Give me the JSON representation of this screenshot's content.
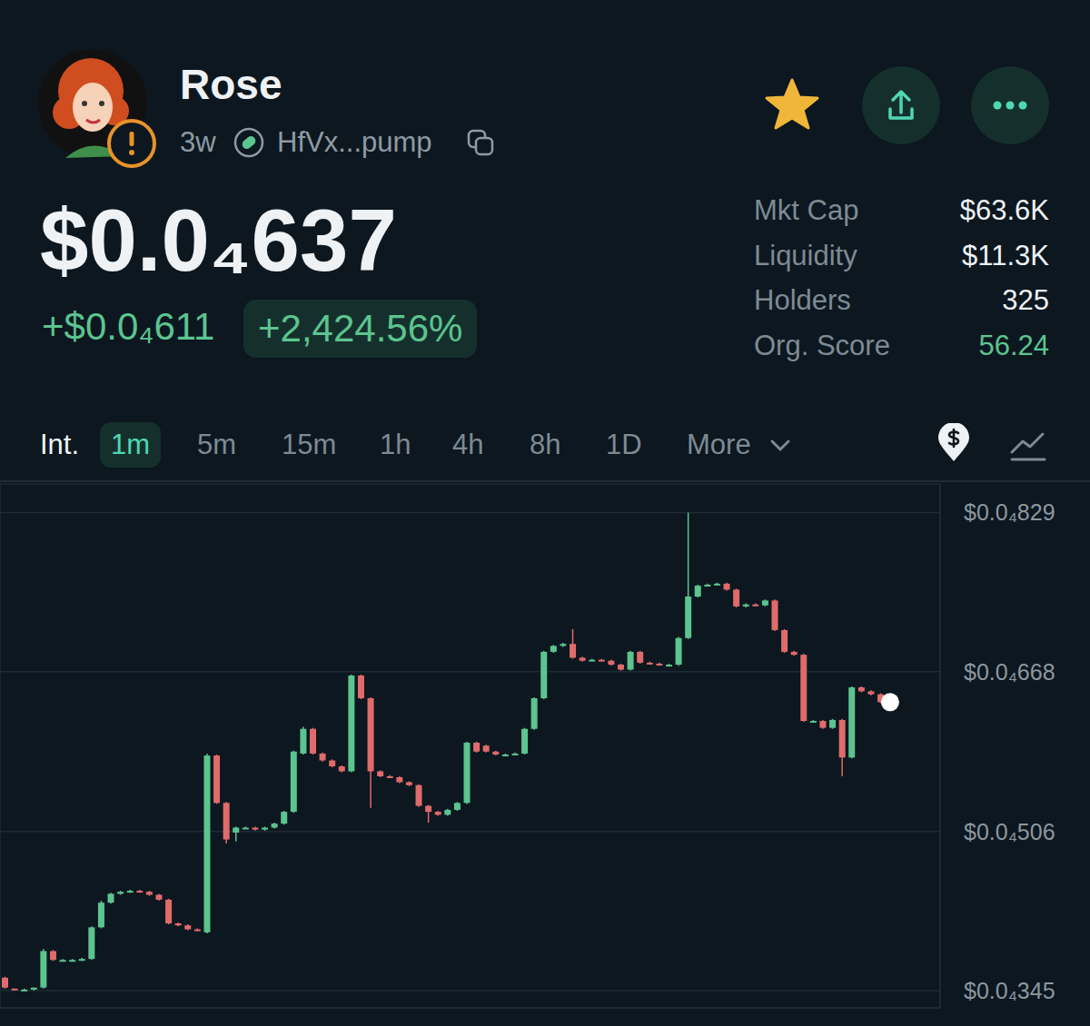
{
  "header": {
    "name": "Rose",
    "age": "3w",
    "address": "HfVx...pump",
    "price": "$0.0₄637",
    "change": "+$0.0₄611",
    "change_percent": "+2,424.56%"
  },
  "stats": [
    {
      "label": "Mkt Cap",
      "value": "$63.6K"
    },
    {
      "label": "Liquidity",
      "value": "$11.3K"
    },
    {
      "label": "Holders",
      "value": "325"
    },
    {
      "label": "Org. Score",
      "value": "56.24"
    }
  ],
  "intervals": {
    "label": "Int.",
    "options": [
      "1m",
      "5m",
      "15m",
      "1h",
      "4h",
      "8h",
      "1D",
      "More"
    ],
    "selected": "1m"
  },
  "chart_data": {
    "type": "candlestick",
    "open": [
      3.58e-05,
      3.47e-05,
      3.46e-05,
      3.46e-05,
      3.48e-05,
      3.85e-05,
      3.76e-05,
      3.76e-05,
      3.76e-05,
      3.77e-05,
      4.09e-05,
      4.34e-05,
      4.43e-05,
      4.45e-05,
      4.46e-05,
      4.45e-05,
      4.42e-05,
      4.37e-05,
      4.13e-05,
      4.11e-05,
      4.07e-05,
      4.04e-05,
      5.83e-05,
      5.35e-05,
      5.05e-05,
      5.1e-05,
      5.1e-05,
      5.08e-05,
      5.1e-05,
      5.14e-05,
      5.26e-05,
      5.85e-05,
      6.1e-05,
      5.85e-05,
      5.78e-05,
      5.72e-05,
      5.67e-05,
      6.64e-05,
      6.41e-05,
      5.67e-05,
      5.62e-05,
      5.61e-05,
      5.56e-05,
      5.53e-05,
      5.32e-05,
      5.26e-05,
      5.23e-05,
      5.28e-05,
      5.35e-05,
      5.96e-05,
      5.93e-05,
      5.87e-05,
      5.84e-05,
      5.84e-05,
      5.85e-05,
      6.1e-05,
      6.41e-05,
      6.88e-05,
      6.94e-05,
      6.96e-05,
      6.82e-05,
      6.8e-05,
      6.8e-05,
      6.79e-05,
      6.75e-05,
      6.7e-05,
      6.88e-05,
      6.77e-05,
      6.76e-05,
      6.75e-05,
      6.75e-05,
      7.02e-05,
      7.44e-05,
      7.55e-05,
      7.56e-05,
      7.57e-05,
      7.51e-05,
      7.34e-05,
      7.36e-05,
      7.35e-05,
      7.4e-05,
      7.1e-05,
      6.88e-05,
      6.85e-05,
      6.18e-05,
      6.18e-05,
      6.11e-05,
      6.19e-05,
      5.81e-05,
      6.52e-05,
      6.48e-05,
      6.45e-05
    ],
    "high": [
      3.59e-05,
      3.47e-05,
      3.47e-05,
      3.48e-05,
      3.87e-05,
      3.86e-05,
      3.77e-05,
      3.77e-05,
      3.78e-05,
      4.1e-05,
      4.36e-05,
      4.44e-05,
      4.46e-05,
      4.47e-05,
      4.47e-05,
      4.46e-05,
      4.43e-05,
      4.38e-05,
      4.14e-05,
      4.12e-05,
      4.08e-05,
      5.85e-05,
      5.84e-05,
      5.36e-05,
      5.11e-05,
      5.11e-05,
      5.11e-05,
      5.11e-05,
      5.15e-05,
      5.27e-05,
      5.88e-05,
      6.12e-05,
      6.11e-05,
      5.86e-05,
      5.79e-05,
      5.73e-05,
      6.65e-05,
      6.65e-05,
      6.42e-05,
      5.68e-05,
      5.63e-05,
      5.62e-05,
      5.57e-05,
      5.54e-05,
      5.33e-05,
      5.27e-05,
      5.29e-05,
      5.36e-05,
      5.97e-05,
      5.97e-05,
      5.94e-05,
      5.88e-05,
      5.85e-05,
      5.86e-05,
      6.11e-05,
      6.42e-05,
      6.89e-05,
      6.95e-05,
      6.97e-05,
      7.11e-05,
      6.83e-05,
      6.81e-05,
      6.81e-05,
      6.8e-05,
      6.76e-05,
      6.89e-05,
      6.89e-05,
      6.78e-05,
      6.77e-05,
      6.76e-05,
      7.03e-05,
      8.29e-05,
      7.56e-05,
      7.57e-05,
      7.58e-05,
      7.58e-05,
      7.52e-05,
      7.37e-05,
      7.37e-05,
      7.41e-05,
      7.41e-05,
      7.11e-05,
      6.89e-05,
      6.86e-05,
      6.19e-05,
      6.19e-05,
      6.2e-05,
      6.2e-05,
      6.53e-05,
      6.53e-05,
      6.49e-05,
      6.46e-05
    ],
    "low": [
      3.47e-05,
      3.45e-05,
      3.45e-05,
      3.45e-05,
      3.47e-05,
      3.75e-05,
      3.75e-05,
      3.75e-05,
      3.75e-05,
      3.76e-05,
      4.08e-05,
      4.33e-05,
      4.42e-05,
      4.44e-05,
      4.44e-05,
      4.41e-05,
      4.36e-05,
      4.12e-05,
      4.1e-05,
      4.06e-05,
      4.05e-05,
      4.03e-05,
      5.34e-05,
      4.94e-05,
      4.96e-05,
      5.09e-05,
      5.07e-05,
      5.07e-05,
      5.09e-05,
      5.13e-05,
      5.25e-05,
      5.84e-05,
      5.84e-05,
      5.77e-05,
      5.71e-05,
      5.66e-05,
      5.66e-05,
      6.4e-05,
      5.3e-05,
      5.61e-05,
      5.6e-05,
      5.55e-05,
      5.52e-05,
      5.31e-05,
      5.15e-05,
      5.22e-05,
      5.22e-05,
      5.27e-05,
      5.34e-05,
      5.86e-05,
      5.86e-05,
      5.83e-05,
      5.83e-05,
      5.83e-05,
      5.84e-05,
      6.09e-05,
      6.4e-05,
      6.87e-05,
      6.93e-05,
      6.81e-05,
      6.78e-05,
      6.79e-05,
      6.78e-05,
      6.74e-05,
      6.69e-05,
      6.69e-05,
      6.76e-05,
      6.75e-05,
      6.74e-05,
      6.74e-05,
      6.74e-05,
      7.01e-05,
      7.43e-05,
      7.54e-05,
      7.55e-05,
      7.5e-05,
      7.33e-05,
      7.33e-05,
      7.34e-05,
      7.34e-05,
      7.09e-05,
      6.87e-05,
      6.84e-05,
      6.17e-05,
      6.17e-05,
      6.1e-05,
      6.1e-05,
      5.62e-05,
      5.8e-05,
      6.47e-05,
      6.44e-05,
      6.36e-05
    ],
    "close": [
      3.48e-05,
      3.46e-05,
      3.46e-05,
      3.48e-05,
      3.85e-05,
      3.76e-05,
      3.76e-05,
      3.76e-05,
      3.77e-05,
      4.09e-05,
      4.34e-05,
      4.43e-05,
      4.45e-05,
      4.46e-05,
      4.45e-05,
      4.42e-05,
      4.37e-05,
      4.13e-05,
      4.11e-05,
      4.07e-05,
      4.06e-05,
      5.83e-05,
      5.35e-05,
      4.98e-05,
      5.1e-05,
      5.1e-05,
      5.08e-05,
      5.1e-05,
      5.14e-05,
      5.26e-05,
      5.87e-05,
      6.1e-05,
      5.85e-05,
      5.78e-05,
      5.72e-05,
      5.67e-05,
      6.64e-05,
      6.41e-05,
      5.67e-05,
      5.62e-05,
      5.61e-05,
      5.56e-05,
      5.53e-05,
      5.32e-05,
      5.26e-05,
      5.23e-05,
      5.28e-05,
      5.35e-05,
      5.96e-05,
      5.87e-05,
      5.87e-05,
      5.84e-05,
      5.84e-05,
      5.85e-05,
      6.1e-05,
      6.41e-05,
      6.88e-05,
      6.94e-05,
      6.96e-05,
      6.82e-05,
      6.79e-05,
      6.8e-05,
      6.79e-05,
      6.75e-05,
      6.7e-05,
      6.88e-05,
      6.77e-05,
      6.76e-05,
      6.75e-05,
      6.75e-05,
      7.02e-05,
      7.44e-05,
      7.55e-05,
      7.56e-05,
      7.57e-05,
      7.51e-05,
      7.34e-05,
      7.36e-05,
      7.35e-05,
      7.4e-05,
      7.1e-05,
      6.88e-05,
      6.85e-05,
      6.18e-05,
      6.18e-05,
      6.11e-05,
      6.19e-05,
      5.81e-05,
      6.52e-05,
      6.48e-05,
      6.45e-05,
      6.37e-05
    ],
    "current": 6.37e-05,
    "ylim": [
      3.275e-05,
      8.58e-05
    ],
    "yticks": [
      {
        "value": 8.29e-05,
        "label": "$0.0₄829"
      },
      {
        "value": 6.68e-05,
        "label": "$0.0₄668"
      },
      {
        "value": 5.06e-05,
        "label": "$0.0₄506"
      },
      {
        "value": 3.45e-05,
        "label": "$0.0₄345"
      }
    ],
    "xlim": [
      -0.5,
      97.2
    ],
    "xticks": [
      14.2,
      33.8,
      53.4,
      73,
      92.6
    ],
    "grid": true,
    "tick_labels": "y"
  }
}
